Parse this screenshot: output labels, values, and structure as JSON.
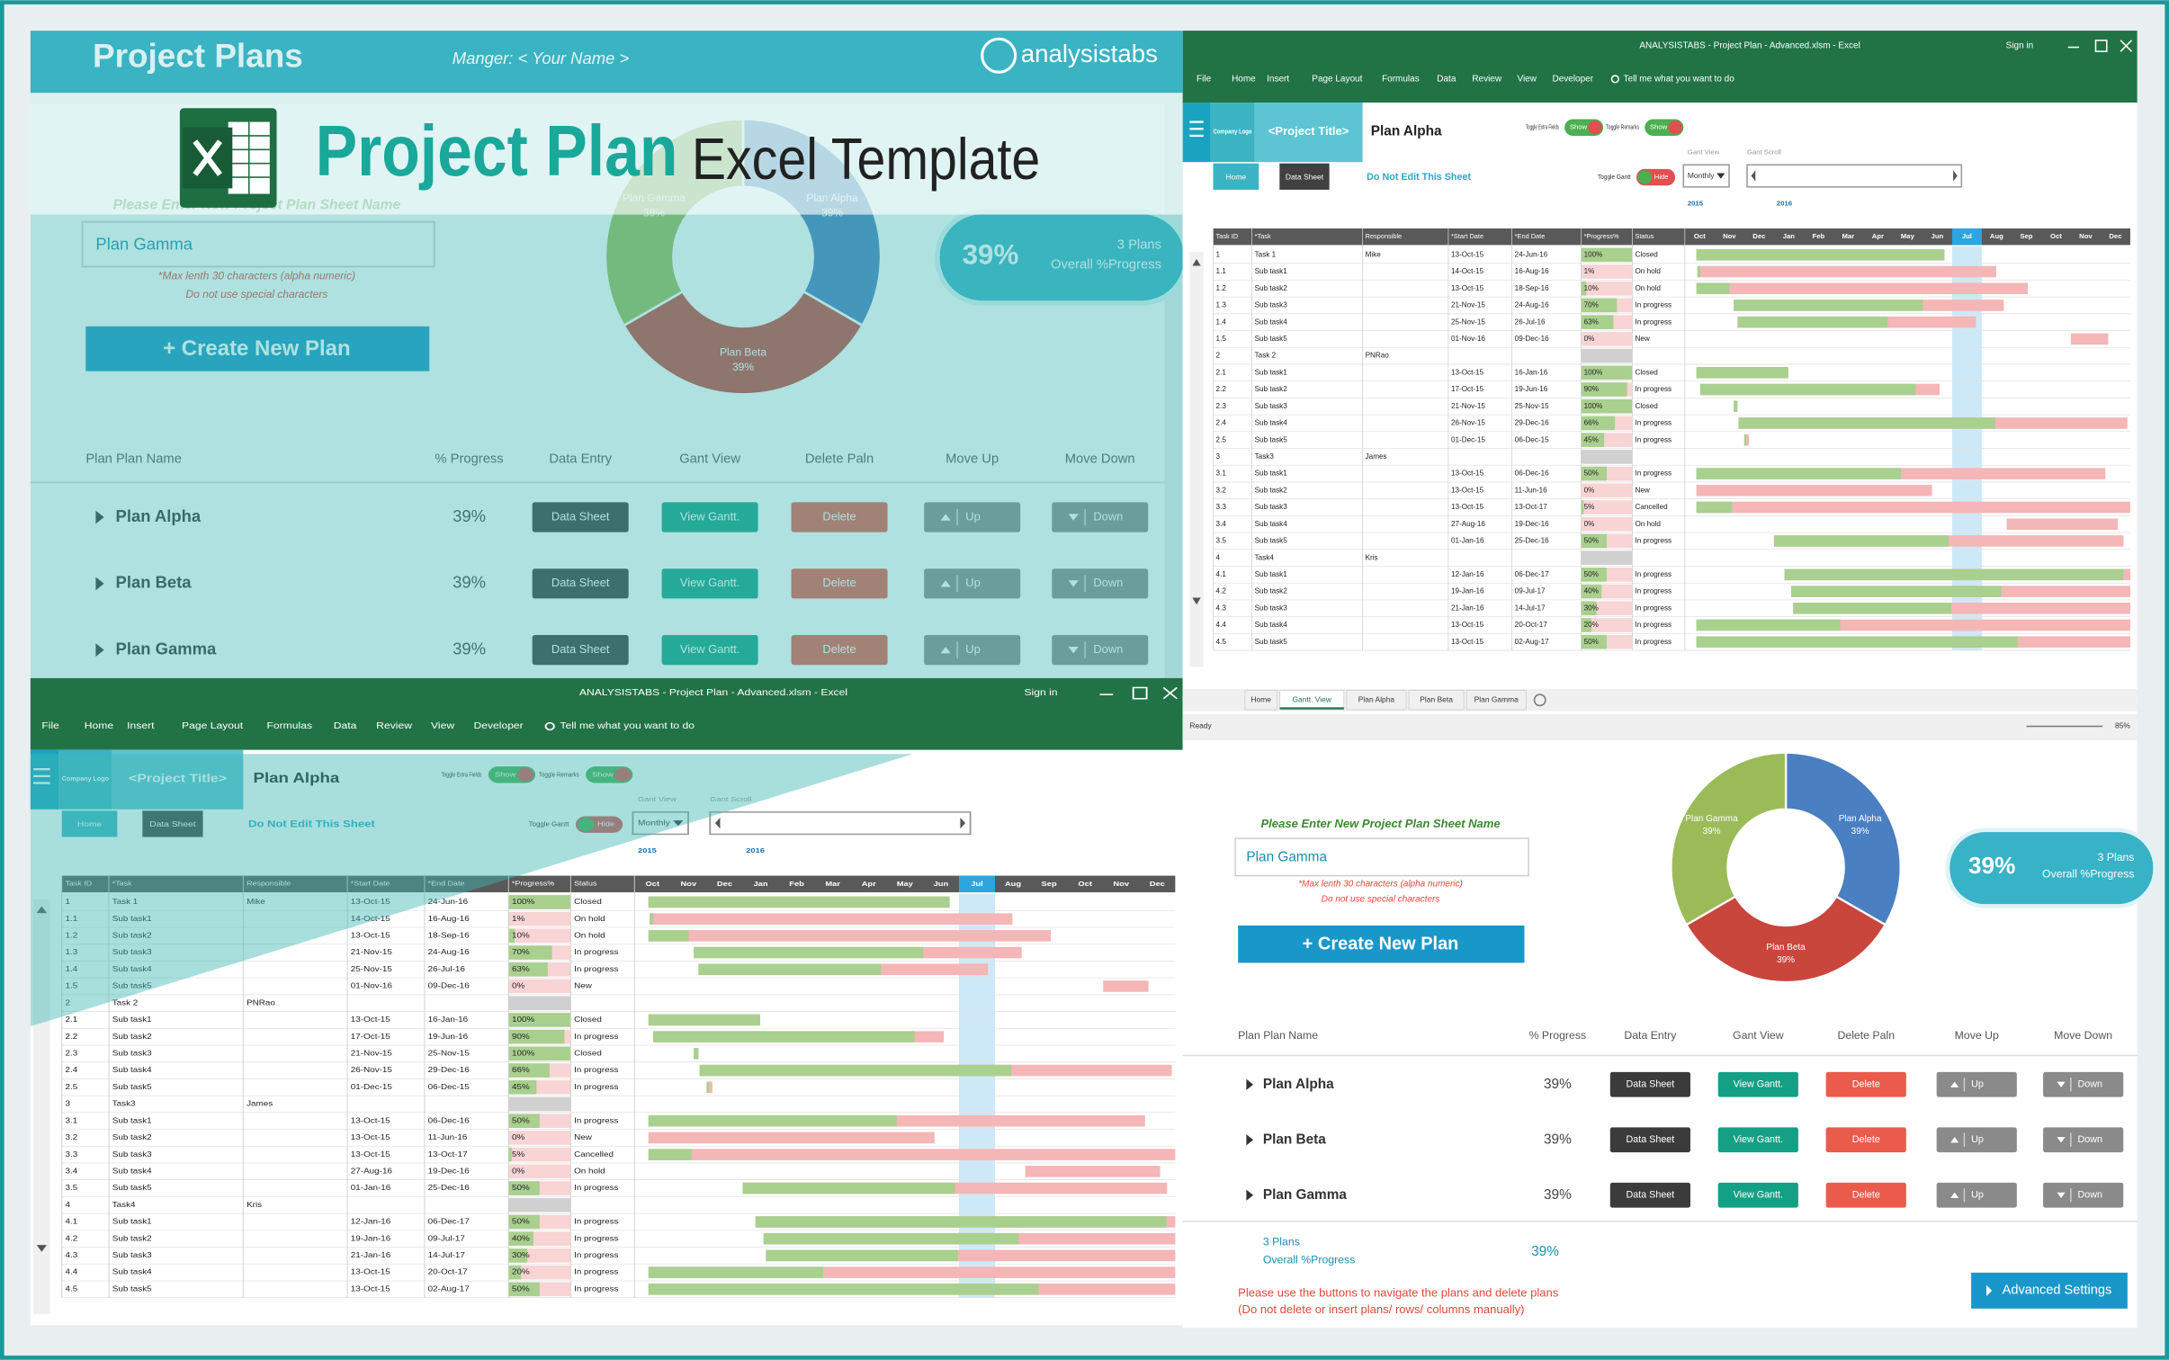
{
  "banner": {
    "title": "Project Plan",
    "subtitle": "Excel Template"
  },
  "app_header": {
    "title": "Project Plans",
    "manager": "Manger: < Your Name >",
    "brand": "analysistabs"
  },
  "dashboard": {
    "prompt": "Please Enter New Project Plan Sheet Name",
    "input": "Plan Gamma",
    "hints": [
      "*Max lenth 30 characters (alpha numeric)",
      "Do not use special characters"
    ],
    "create_button": "+ Create New Plan",
    "donut": {
      "slices": [
        {
          "name": "Plan Alpha",
          "value": 39,
          "label": "39%",
          "color": "#4a7fc1"
        },
        {
          "name": "Plan Beta",
          "value": 39,
          "label": "39%",
          "color": "#c9463d"
        },
        {
          "name": "Plan Gamma",
          "value": 39,
          "label": "39%",
          "color": "#9bbb59"
        }
      ]
    },
    "badge": {
      "value": "39%",
      "plans": "3 Plans",
      "caption": "Overall %Progress"
    },
    "columns": [
      "Plan Plan Name",
      "% Progress",
      "Data Entry",
      "Gant View",
      "Delete Paln",
      "Move Up",
      "Move Down"
    ],
    "plans": [
      {
        "name": "Plan Alpha",
        "progress": "39%"
      },
      {
        "name": "Plan Beta",
        "progress": "39%"
      },
      {
        "name": "Plan Gamma",
        "progress": "39%"
      }
    ],
    "buttons": {
      "data": "Data Sheet",
      "gantt": "View Gantt.",
      "delete": "Delete",
      "up": "Up",
      "down": "Down"
    },
    "summary": {
      "plans": "3 Plans",
      "caption": "Overall %Progress",
      "progress": "39%"
    },
    "notes": [
      "Please use the buttons to navigate the plans and delete plans",
      "(Do not delete or insert plans/ rows/ columns manually)"
    ],
    "advanced": "Advanced Settings"
  },
  "excel": {
    "window_title": "ANALYSISTABS - Project Plan - Advanced.xlsm - Excel",
    "sign_in": "Sign in",
    "menu": [
      "File",
      "Home",
      "Insert",
      "Page Layout",
      "Formulas",
      "Data",
      "Review",
      "View",
      "Developer"
    ],
    "tell_me": "Tell me what you want to do",
    "logo": "Company Logo",
    "project_title": "<Project Title>",
    "sheet_title": "Plan Alpha",
    "toggles": [
      {
        "label": "Toggle Extra Fields",
        "state": "Show"
      },
      {
        "label": "Toggle Remarks",
        "state": "Show"
      },
      {
        "label": "Toggle Gantt",
        "state": "Hide"
      }
    ],
    "nav": [
      "Home",
      "Data Sheet"
    ],
    "notice": "Do Not Edit This Sheet",
    "gant_view": "Gant View",
    "gant_scroll": "Gant Scroll",
    "view_mode": "Monthly",
    "years": [
      "2015",
      "2016"
    ],
    "months": [
      "Oct",
      "Nov",
      "Dec",
      "Jan",
      "Feb",
      "Mar",
      "Apr",
      "May",
      "Jun",
      "Jul",
      "Aug",
      "Sep",
      "Oct",
      "Nov",
      "Dec"
    ],
    "columns": [
      "Task ID",
      "*Task",
      "Responsible",
      "*Start Date",
      "*End Date",
      "*Progress%",
      "Status"
    ],
    "rows": [
      [
        "1",
        "Task 1",
        "Mike",
        "13-Oct-15",
        "24-Jun-16",
        "100%",
        "Closed"
      ],
      [
        "1.1",
        "Sub task1",
        null,
        "14-Oct-15",
        "16-Aug-16",
        "1%",
        "On hold"
      ],
      [
        "1.2",
        "Sub task2",
        null,
        "13-Oct-15",
        "18-Sep-16",
        "10%",
        "On hold"
      ],
      [
        "1.3",
        "Sub task3",
        null,
        "21-Nov-15",
        "24-Aug-16",
        "70%",
        "In progress"
      ],
      [
        "1.4",
        "Sub task4",
        null,
        "25-Nov-15",
        "26-Jul-16",
        "63%",
        "In progress"
      ],
      [
        "1.5",
        "Sub task5",
        null,
        "01-Nov-16",
        "09-Dec-16",
        "0%",
        "New"
      ],
      [
        "2",
        "Task 2",
        "PNRao",
        null,
        null,
        null,
        null
      ],
      [
        "2.1",
        "Sub task1",
        null,
        "13-Oct-15",
        "16-Jan-16",
        "100%",
        "Closed"
      ],
      [
        "2.2",
        "Sub task2",
        null,
        "17-Oct-15",
        "19-Jun-16",
        "90%",
        "In progress"
      ],
      [
        "2.3",
        "Sub task3",
        null,
        "21-Nov-15",
        "25-Nov-15",
        "100%",
        "Closed"
      ],
      [
        "2.4",
        "Sub task4",
        null,
        "26-Nov-15",
        "29-Dec-16",
        "66%",
        "In progress"
      ],
      [
        "2.5",
        "Sub task5",
        null,
        "01-Dec-15",
        "06-Dec-15",
        "45%",
        "In progress"
      ],
      [
        "3",
        "Task3",
        "James",
        null,
        null,
        null,
        null
      ],
      [
        "3.1",
        "Sub task1",
        null,
        "13-Oct-15",
        "06-Dec-16",
        "50%",
        "In progress"
      ],
      [
        "3.2",
        "Sub task2",
        null,
        "13-Oct-15",
        "11-Jun-16",
        "0%",
        "New"
      ],
      [
        "3.3",
        "Sub task3",
        null,
        "13-Oct-15",
        "13-Oct-17",
        "5%",
        "Cancelled"
      ],
      [
        "3.4",
        "Sub task4",
        null,
        "27-Aug-16",
        "19-Dec-16",
        "0%",
        "On hold"
      ],
      [
        "3.5",
        "Sub task5",
        null,
        "01-Jan-16",
        "25-Dec-16",
        "50%",
        "In progress"
      ],
      [
        "4",
        "Task4",
        "Kris",
        null,
        null,
        null,
        null
      ],
      [
        "4.1",
        "Sub task1",
        null,
        "12-Jan-16",
        "06-Dec-17",
        "50%",
        "In progress"
      ],
      [
        "4.2",
        "Sub task2",
        null,
        "19-Jan-16",
        "09-Jul-17",
        "40%",
        "In progress"
      ],
      [
        "4.3",
        "Sub task3",
        null,
        "21-Jan-16",
        "14-Jul-17",
        "30%",
        "In progress"
      ],
      [
        "4.4",
        "Sub task4",
        null,
        "13-Oct-15",
        "20-Oct-17",
        "20%",
        "In progress"
      ],
      [
        "4.5",
        "Sub task5",
        null,
        "13-Oct-15",
        "02-Aug-17",
        "50%",
        "In progress"
      ]
    ],
    "tabs": [
      "Home",
      "Gantt. View",
      "Plan Alpha",
      "Plan Beta",
      "Plan Gamma"
    ],
    "status": "Ready",
    "zoom": "85%"
  }
}
